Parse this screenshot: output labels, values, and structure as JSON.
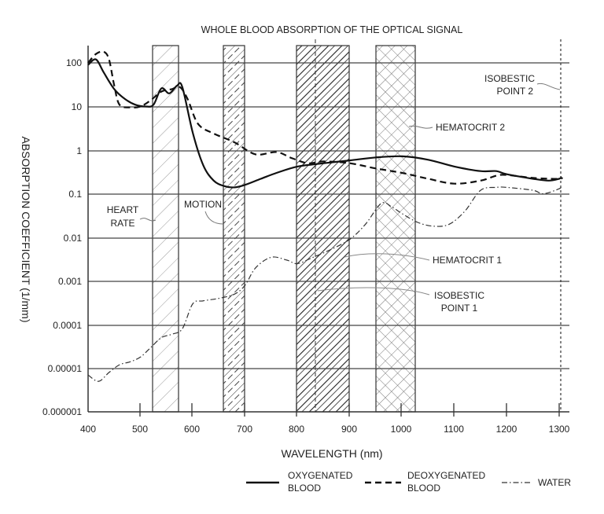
{
  "chart_data": {
    "type": "line",
    "title": "WHOLE BLOOD ABSORPTION OF THE OPTICAL SIGNAL",
    "xlabel": "WAVELENGTH (nm)",
    "ylabel": "ABSORPTION COEFFICIENT (1/mm)",
    "xlim": [
      400,
      1320
    ],
    "ylim": [
      1e-06,
      200
    ],
    "yscale": "log",
    "grid": "horizontal",
    "x_ticks": [
      "400",
      "500",
      "600",
      "700",
      "800",
      "900",
      "1000",
      "1100",
      "1200",
      "1300"
    ],
    "y_ticks": [
      "100",
      "10",
      "1",
      "0.1",
      "0.01",
      "0.001",
      "0.0001",
      "0.00001",
      "0.000001"
    ],
    "legend_position": "bottom-right",
    "series": [
      {
        "name": "OXYGENATED BLOOD",
        "style": "solid",
        "x": [
          400,
          415,
          430,
          450,
          470,
          490,
          510,
          525,
          540,
          555,
          570,
          580,
          600,
          620,
          640,
          660,
          680,
          700,
          730,
          760,
          800,
          850,
          900,
          950,
          1000,
          1050,
          1100,
          1150,
          1180,
          1200,
          1250,
          1280,
          1300,
          1305
        ],
        "values": [
          90,
          120,
          60,
          25,
          15,
          11,
          10,
          11,
          26,
          20,
          30,
          28,
          2.5,
          0.45,
          0.2,
          0.15,
          0.14,
          0.16,
          0.22,
          0.3,
          0.42,
          0.5,
          0.58,
          0.68,
          0.72,
          0.6,
          0.42,
          0.33,
          0.33,
          0.28,
          0.22,
          0.2,
          0.22,
          0.24
        ]
      },
      {
        "name": "DEOXYGENATED BLOOD",
        "style": "dashed",
        "x": [
          400,
          415,
          430,
          440,
          450,
          460,
          480,
          500,
          520,
          540,
          560,
          575,
          590,
          610,
          640,
          680,
          720,
          760,
          790,
          820,
          850,
          900,
          950,
          1000,
          1050,
          1100,
          1150,
          1180,
          1200,
          1250,
          1300,
          1305
        ],
        "values": [
          100,
          160,
          180,
          120,
          30,
          11,
          9.5,
          10,
          14,
          22,
          25,
          28,
          15,
          4,
          2.4,
          1.5,
          0.8,
          0.9,
          0.65,
          0.5,
          0.55,
          0.5,
          0.38,
          0.3,
          0.22,
          0.17,
          0.2,
          0.26,
          0.27,
          0.23,
          0.22,
          0.24
        ]
      },
      {
        "name": "WATER",
        "style": "dash-dot",
        "x": [
          400,
          420,
          440,
          460,
          480,
          500,
          520,
          540,
          560,
          580,
          600,
          620,
          650,
          680,
          700,
          720,
          750,
          780,
          800,
          830,
          860,
          900,
          930,
          960,
          980,
          1000,
          1030,
          1060,
          1090,
          1120,
          1150,
          1180,
          1200,
          1250,
          1270,
          1300,
          1305
        ],
        "values": [
          7e-06,
          5e-06,
          8e-06,
          1.2e-05,
          1.4e-05,
          1.8e-05,
          3e-05,
          5e-05,
          6e-05,
          8e-05,
          0.0003,
          0.00035,
          0.0004,
          0.0005,
          0.0008,
          0.002,
          0.0035,
          0.003,
          0.0025,
          0.0035,
          0.005,
          0.009,
          0.02,
          0.06,
          0.05,
          0.035,
          0.022,
          0.018,
          0.02,
          0.04,
          0.12,
          0.14,
          0.14,
          0.12,
          0.1,
          0.13,
          0.15
        ]
      }
    ],
    "bands": [
      {
        "name": "HEART RATE",
        "x_start": 530,
        "x_end": 575,
        "pattern": "light-diagonal"
      },
      {
        "name": "MOTION",
        "x_start": 660,
        "x_end": 700,
        "pattern": "dashed-diagonal"
      },
      {
        "name": "HEMATOCRIT 1",
        "x_start": 800,
        "x_end": 900,
        "pattern": "bold-diagonal"
      },
      {
        "name": "HEMATOCRIT 2",
        "x_start": 950,
        "x_end": 1025,
        "pattern": "crosshatch"
      }
    ],
    "reference_lines": [
      {
        "name": "ISOBESTIC POINT 1",
        "x": 835,
        "style": "dashed-vertical"
      },
      {
        "name": "ISOBESTIC POINT 2",
        "x": 1305,
        "style": "dotted-vertical"
      }
    ],
    "annotations": [
      {
        "text_lines": [
          "HEART",
          "RATE"
        ],
        "points_to": "heart-rate-band"
      },
      {
        "text_lines": [
          "MOTION"
        ],
        "points_to": "motion-band"
      },
      {
        "text_lines": [
          "HEMATOCRIT 1"
        ],
        "points_to": "hematocrit-1-band"
      },
      {
        "text_lines": [
          "ISOBESTIC",
          "POINT 1"
        ],
        "points_to": "isobestic-point-1-line"
      },
      {
        "text_lines": [
          "HEMATOCRIT 2"
        ],
        "points_to": "hematocrit-2-band"
      },
      {
        "text_lines": [
          "ISOBESTIC",
          "POINT 2"
        ],
        "points_to": "isobestic-point-2-line"
      }
    ]
  },
  "legend": {
    "oxygenated": {
      "line1": "OXYGENATED",
      "line2": "BLOOD"
    },
    "deoxygenated": {
      "line1": "DEOXYGENATED",
      "line2": "BLOOD"
    },
    "water": {
      "line1": "WATER"
    }
  }
}
